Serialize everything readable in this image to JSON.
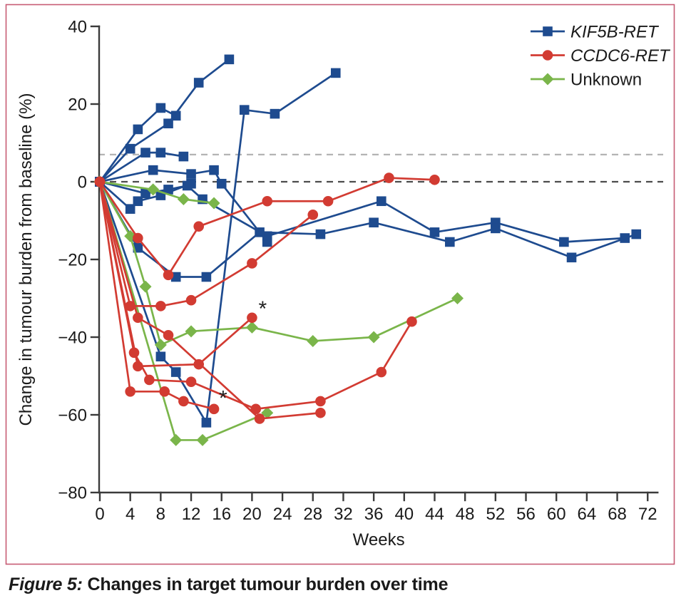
{
  "figure": {
    "caption_label": "Figure 5:",
    "caption_text": " Changes in target tumour burden over time"
  },
  "colors": {
    "kif5b_blue": "#1e4b8f",
    "ccdc6_red": "#d23b32",
    "unknown_green": "#7ab54a",
    "axis": "#3a3a3a",
    "text": "#1a1a1a",
    "zero_line": "#4d4d4d",
    "upper_ref_line": "#b3b3b3",
    "frame_border": "#c75b74",
    "background": "#ffffff"
  },
  "chart_data": {
    "type": "line",
    "title": "",
    "xlabel": "Weeks",
    "ylabel": "Change in tumour burden from baseline (%)",
    "xlim": [
      0,
      72
    ],
    "ylim": [
      -80,
      40
    ],
    "x_ticks": [
      0,
      4,
      8,
      12,
      16,
      20,
      24,
      28,
      32,
      36,
      40,
      44,
      48,
      52,
      56,
      60,
      64,
      68,
      72
    ],
    "y_ticks": [
      40,
      20,
      0,
      -20,
      -40,
      -60,
      -80
    ],
    "grid": false,
    "legend_position": "top-right-inside",
    "reference_lines": [
      {
        "y": 7,
        "style": "dashed",
        "color_key": "upper_ref_line"
      },
      {
        "y": 0,
        "style": "dashed",
        "color_key": "zero_line"
      }
    ],
    "legend": [
      {
        "label": "KIF5B-RET",
        "group": "KIF5B-RET",
        "marker": "square",
        "color_key": "kif5b_blue",
        "italic": true
      },
      {
        "label": "CCDC6-RET",
        "group": "CCDC6-RET",
        "marker": "circle",
        "color_key": "ccdc6_red",
        "italic": true
      },
      {
        "label": "Unknown",
        "group": "Unknown",
        "marker": "diamond",
        "color_key": "unknown_green",
        "italic": false
      }
    ],
    "series": [
      {
        "group": "KIF5B-RET",
        "name": "kif5b-1",
        "points": [
          [
            0,
            0
          ],
          [
            5,
            13.5
          ],
          [
            8,
            19
          ],
          [
            10,
            17
          ]
        ]
      },
      {
        "group": "KIF5B-RET",
        "name": "kif5b-2",
        "points": [
          [
            0,
            0
          ],
          [
            4,
            8.5
          ],
          [
            9,
            15
          ],
          [
            13,
            25.5
          ],
          [
            17,
            31.5
          ]
        ]
      },
      {
        "group": "KIF5B-RET",
        "name": "kif5b-3",
        "points": [
          [
            0,
            0
          ],
          [
            6,
            7.5
          ],
          [
            8,
            7.5
          ],
          [
            11,
            6.5
          ]
        ]
      },
      {
        "group": "KIF5B-RET",
        "name": "kif5b-4",
        "points": [
          [
            0,
            0
          ],
          [
            7,
            3
          ],
          [
            12,
            2
          ],
          [
            15,
            3
          ],
          [
            16,
            -0.5
          ],
          [
            22,
            -15.5
          ]
        ]
      },
      {
        "group": "KIF5B-RET",
        "name": "kif5b-5",
        "points": [
          [
            0,
            0
          ],
          [
            4,
            -7
          ],
          [
            5,
            -5
          ],
          [
            8,
            -3.5
          ],
          [
            12,
            -0.5
          ]
        ]
      },
      {
        "group": "KIF5B-RET",
        "name": "kif5b-6",
        "points": [
          [
            0,
            0
          ],
          [
            6,
            -3
          ],
          [
            9,
            -2
          ],
          [
            11.5,
            -1
          ],
          [
            13.5,
            -4.5
          ],
          [
            22,
            -14
          ],
          [
            37,
            -5
          ],
          [
            44,
            -13
          ],
          [
            52,
            -10.5
          ],
          [
            61,
            -15.5
          ],
          [
            69,
            -14.5
          ]
        ]
      },
      {
        "group": "KIF5B-RET",
        "name": "kif5b-7",
        "points": [
          [
            0,
            0
          ],
          [
            5,
            -17
          ],
          [
            10,
            -24.5
          ],
          [
            14,
            -24.5
          ],
          [
            21,
            -13
          ],
          [
            29,
            -13.5
          ],
          [
            36,
            -10.5
          ],
          [
            46,
            -15.5
          ],
          [
            52,
            -12
          ],
          [
            62,
            -19.5
          ],
          [
            70.5,
            -13.5
          ]
        ]
      },
      {
        "group": "KIF5B-RET",
        "name": "kif5b-8",
        "points": [
          [
            0,
            0
          ],
          [
            8,
            -45
          ],
          [
            10,
            -49
          ],
          [
            14,
            -62
          ],
          [
            19,
            18.5
          ],
          [
            23,
            17.5
          ],
          [
            31,
            28
          ]
        ]
      },
      {
        "group": "Unknown",
        "name": "unknown-1",
        "points": [
          [
            0,
            0
          ],
          [
            7,
            -2
          ],
          [
            11,
            -4.5
          ],
          [
            15,
            -5.5
          ]
        ]
      },
      {
        "group": "Unknown",
        "name": "unknown-2",
        "points": [
          [
            0,
            0
          ],
          [
            4,
            -14
          ],
          [
            6,
            -27
          ],
          [
            8,
            -42
          ],
          [
            12,
            -38.5
          ],
          [
            20,
            -37.5
          ],
          [
            28,
            -41
          ],
          [
            36,
            -40
          ],
          [
            47,
            -30
          ]
        ]
      },
      {
        "group": "Unknown",
        "name": "unknown-3",
        "points": [
          [
            0,
            0
          ],
          [
            10,
            -66.5
          ],
          [
            13.5,
            -66.5
          ],
          [
            22,
            -59.5
          ]
        ]
      },
      {
        "group": "CCDC6-RET",
        "name": "ccdc6-1",
        "points": [
          [
            0,
            0
          ],
          [
            5,
            -14.5
          ],
          [
            9,
            -24
          ],
          [
            13,
            -11.5
          ],
          [
            22,
            -5
          ],
          [
            30,
            -5
          ],
          [
            38,
            1
          ],
          [
            44,
            0.5
          ]
        ]
      },
      {
        "group": "CCDC6-RET",
        "name": "ccdc6-2",
        "points": [
          [
            0,
            0
          ],
          [
            4,
            -32
          ],
          [
            8,
            -32
          ],
          [
            12,
            -30.5
          ],
          [
            20,
            -21
          ],
          [
            28,
            -8.5
          ]
        ]
      },
      {
        "group": "CCDC6-RET",
        "name": "ccdc6-3",
        "points": [
          [
            0,
            0
          ],
          [
            5,
            -35
          ],
          [
            9,
            -39.5
          ],
          [
            21,
            -61
          ],
          [
            29,
            -59.5
          ]
        ]
      },
      {
        "group": "CCDC6-RET",
        "name": "ccdc6-4",
        "points": [
          [
            0,
            0
          ],
          [
            5,
            -47.5
          ],
          [
            13,
            -47
          ],
          [
            20,
            -35
          ]
        ]
      },
      {
        "group": "CCDC6-RET",
        "name": "ccdc6-5",
        "points": [
          [
            0,
            0
          ],
          [
            4.5,
            -44
          ],
          [
            6.5,
            -51
          ],
          [
            12,
            -51.5
          ],
          [
            20.5,
            -58.5
          ],
          [
            29,
            -56.5
          ],
          [
            37,
            -49
          ],
          [
            41,
            -36
          ]
        ]
      },
      {
        "group": "CCDC6-RET",
        "name": "ccdc6-6",
        "points": [
          [
            0,
            0
          ],
          [
            4,
            -54
          ],
          [
            8.5,
            -54
          ],
          [
            11,
            -56.5
          ],
          [
            15,
            -58.5
          ]
        ]
      }
    ],
    "annotations": [
      {
        "text": "*",
        "week": 16.2,
        "value": -57.5,
        "meaning": "asterisk-marker"
      },
      {
        "text": "*",
        "week": 21.4,
        "value": -34.5,
        "meaning": "asterisk-marker"
      }
    ]
  }
}
